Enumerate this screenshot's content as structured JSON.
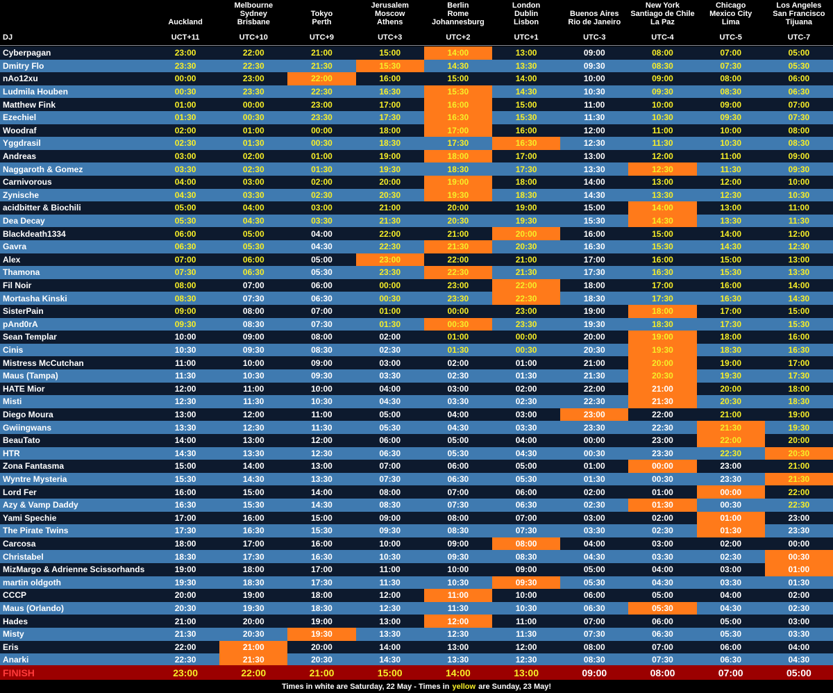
{
  "header": {
    "dj_label": "DJ",
    "zones": [
      {
        "cities": [
          "Auckland"
        ],
        "offset": "UCT+11"
      },
      {
        "cities": [
          "Melbourne",
          "Sydney",
          "Brisbane"
        ],
        "offset": "UTC+10"
      },
      {
        "cities": [
          "Tokyo",
          "Perth"
        ],
        "offset": "UTC+9"
      },
      {
        "cities": [
          "Jerusalem",
          "Moscow",
          "Athens"
        ],
        "offset": "UTC+3"
      },
      {
        "cities": [
          "Berlin",
          "Rome",
          "Johannesburg"
        ],
        "offset": "UTC+2"
      },
      {
        "cities": [
          "London",
          "Dublin",
          "Lisbon"
        ],
        "offset": "UTC+1"
      },
      {
        "cities": [
          "Buenos Aires",
          "Rio de Janeiro"
        ],
        "offset": "UTC-3"
      },
      {
        "cities": [
          "New York",
          "Santiago de Chile",
          "La Paz"
        ],
        "offset": "UTC-4"
      },
      {
        "cities": [
          "Chicago",
          "Mexico City",
          "Lima"
        ],
        "offset": "UTC-5"
      },
      {
        "cities": [
          "Los Angeles",
          "San Francisco",
          "Tijuana"
        ],
        "offset": "UTC-7"
      }
    ]
  },
  "colors": {
    "row_dark": "#0d1a2e",
    "row_blue": "#3f7ab0",
    "highlight": "#ff7a1a",
    "sunday_text": "#f7ee28",
    "finish_bg": "#9b0000",
    "finish_label": "#ff3a3a"
  },
  "rows": [
    {
      "dj": "Cyberpagan",
      "times": [
        "23:00",
        "22:00",
        "21:00",
        "15:00",
        "14:00",
        "13:00",
        "09:00",
        "08:00",
        "07:00",
        "05:00"
      ],
      "highlight": 4
    },
    {
      "dj": "Dmitry Flo",
      "times": [
        "23:30",
        "22:30",
        "21:30",
        "15:30",
        "14:30",
        "13:30",
        "09:30",
        "08:30",
        "07:30",
        "05:30"
      ],
      "highlight": 3
    },
    {
      "dj": "nAo12xu",
      "times": [
        "00:00",
        "23:00",
        "22:00",
        "16:00",
        "15:00",
        "14:00",
        "10:00",
        "09:00",
        "08:00",
        "06:00"
      ],
      "highlight": 2
    },
    {
      "dj": "Ludmila Houben",
      "times": [
        "00:30",
        "23:30",
        "22:30",
        "16:30",
        "15:30",
        "14:30",
        "10:30",
        "09:30",
        "08:30",
        "06:30"
      ],
      "highlight": 4
    },
    {
      "dj": "Matthew Fink",
      "times": [
        "01:00",
        "00:00",
        "23:00",
        "17:00",
        "16:00",
        "15:00",
        "11:00",
        "10:00",
        "09:00",
        "07:00"
      ],
      "highlight": 4
    },
    {
      "dj": "Ezechiel",
      "times": [
        "01:30",
        "00:30",
        "23:30",
        "17:30",
        "16:30",
        "15:30",
        "11:30",
        "10:30",
        "09:30",
        "07:30"
      ],
      "highlight": 4
    },
    {
      "dj": "Woodraf",
      "times": [
        "02:00",
        "01:00",
        "00:00",
        "18:00",
        "17:00",
        "16:00",
        "12:00",
        "11:00",
        "10:00",
        "08:00"
      ],
      "highlight": 4
    },
    {
      "dj": "Yggdrasil",
      "times": [
        "02:30",
        "01:30",
        "00:30",
        "18:30",
        "17:30",
        "16:30",
        "12:30",
        "11:30",
        "10:30",
        "08:30"
      ],
      "highlight": 5
    },
    {
      "dj": "Andreas",
      "times": [
        "03:00",
        "02:00",
        "01:00",
        "19:00",
        "18:00",
        "17:00",
        "13:00",
        "12:00",
        "11:00",
        "09:00"
      ],
      "highlight": 4
    },
    {
      "dj": "Naggaroth & Gomez",
      "times": [
        "03:30",
        "02:30",
        "01:30",
        "19:30",
        "18:30",
        "17:30",
        "13:30",
        "12:30",
        "11:30",
        "09:30"
      ],
      "highlight": 7
    },
    {
      "dj": "Carnivorous",
      "times": [
        "04:00",
        "03:00",
        "02:00",
        "20:00",
        "19:00",
        "18:00",
        "14:00",
        "13:00",
        "12:00",
        "10:00"
      ],
      "highlight": 4
    },
    {
      "dj": "Zynische",
      "times": [
        "04:30",
        "03:30",
        "02:30",
        "20:30",
        "19:30",
        "18:30",
        "14:30",
        "13:30",
        "12:30",
        "10:30"
      ],
      "highlight": 4
    },
    {
      "dj": "acidbitter & Biochili",
      "times": [
        "05:00",
        "04:00",
        "03:00",
        "21:00",
        "20:00",
        "19:00",
        "15:00",
        "14:00",
        "13:00",
        "11:00"
      ],
      "highlight": 7
    },
    {
      "dj": "Dea Decay",
      "times": [
        "05:30",
        "04:30",
        "03:30",
        "21:30",
        "20:30",
        "19:30",
        "15:30",
        "14:30",
        "13:30",
        "11:30"
      ],
      "highlight": 7
    },
    {
      "dj": "Blackdeath1334",
      "times": [
        "06:00",
        "05:00",
        "04:00",
        "22:00",
        "21:00",
        "20:00",
        "16:00",
        "15:00",
        "14:00",
        "12:00"
      ],
      "highlight": 5
    },
    {
      "dj": "Gavra",
      "times": [
        "06:30",
        "05:30",
        "04:30",
        "22:30",
        "21:30",
        "20:30",
        "16:30",
        "15:30",
        "14:30",
        "12:30"
      ],
      "highlight": 4
    },
    {
      "dj": "Alex",
      "times": [
        "07:00",
        "06:00",
        "05:00",
        "23:00",
        "22:00",
        "21:00",
        "17:00",
        "16:00",
        "15:00",
        "13:00"
      ],
      "highlight": 3
    },
    {
      "dj": "Thamona",
      "times": [
        "07:30",
        "06:30",
        "05:30",
        "23:30",
        "22:30",
        "21:30",
        "17:30",
        "16:30",
        "15:30",
        "13:30"
      ],
      "highlight": 4
    },
    {
      "dj": "Fil Noir",
      "times": [
        "08:00",
        "07:00",
        "06:00",
        "00:00",
        "23:00",
        "22:00",
        "18:00",
        "17:00",
        "16:00",
        "14:00"
      ],
      "highlight": 5
    },
    {
      "dj": "Mortasha Kinski",
      "times": [
        "08:30",
        "07:30",
        "06:30",
        "00:30",
        "23:30",
        "22:30",
        "18:30",
        "17:30",
        "16:30",
        "14:30"
      ],
      "highlight": 5
    },
    {
      "dj": "SisterPain",
      "times": [
        "09:00",
        "08:00",
        "07:00",
        "01:00",
        "00:00",
        "23:00",
        "19:00",
        "18:00",
        "17:00",
        "15:00"
      ],
      "highlight": 7
    },
    {
      "dj": "pAnd0rA",
      "times": [
        "09:30",
        "08:30",
        "07:30",
        "01:30",
        "00:30",
        "23:30",
        "19:30",
        "18:30",
        "17:30",
        "15:30"
      ],
      "highlight": 4
    },
    {
      "dj": "Sean Templar",
      "times": [
        "10:00",
        "09:00",
        "08:00",
        "02:00",
        "01:00",
        "00:00",
        "20:00",
        "19:00",
        "18:00",
        "16:00"
      ],
      "highlight": 7
    },
    {
      "dj": "Cinis",
      "times": [
        "10:30",
        "09:30",
        "08:30",
        "02:30",
        "01:30",
        "00:30",
        "20:30",
        "19:30",
        "18:30",
        "16:30"
      ],
      "highlight": 7
    },
    {
      "dj": "Mistress McCutchan",
      "times": [
        "11:00",
        "10:00",
        "09:00",
        "03:00",
        "02:00",
        "01:00",
        "21:00",
        "20:00",
        "19:00",
        "17:00"
      ],
      "highlight": 7
    },
    {
      "dj": "Maus (Tampa)",
      "times": [
        "11:30",
        "10:30",
        "09:30",
        "03:30",
        "02:30",
        "01:30",
        "21:30",
        "20:30",
        "19:30",
        "17:30"
      ],
      "highlight": 7
    },
    {
      "dj": "HATE Mior",
      "times": [
        "12:00",
        "11:00",
        "10:00",
        "04:00",
        "03:00",
        "02:00",
        "22:00",
        "21:00",
        "20:00",
        "18:00"
      ],
      "highlight": 7
    },
    {
      "dj": "Misti",
      "times": [
        "12:30",
        "11:30",
        "10:30",
        "04:30",
        "03:30",
        "02:30",
        "22:30",
        "21:30",
        "20:30",
        "18:30"
      ],
      "highlight": 7
    },
    {
      "dj": "Diego Moura",
      "times": [
        "13:00",
        "12:00",
        "11:00",
        "05:00",
        "04:00",
        "03:00",
        "23:00",
        "22:00",
        "21:00",
        "19:00"
      ],
      "highlight": 6
    },
    {
      "dj": "Gwiingwans",
      "times": [
        "13:30",
        "12:30",
        "11:30",
        "05:30",
        "04:30",
        "03:30",
        "23:30",
        "22:30",
        "21:30",
        "19:30"
      ],
      "highlight": 8
    },
    {
      "dj": "BeauTato",
      "times": [
        "14:00",
        "13:00",
        "12:00",
        "06:00",
        "05:00",
        "04:00",
        "00:00",
        "23:00",
        "22:00",
        "20:00"
      ],
      "highlight": 8
    },
    {
      "dj": "HTR",
      "times": [
        "14:30",
        "13:30",
        "12:30",
        "06:30",
        "05:30",
        "04:30",
        "00:30",
        "23:30",
        "22:30",
        "20:30"
      ],
      "highlight": 9
    },
    {
      "dj": "Zona Fantasma",
      "times": [
        "15:00",
        "14:00",
        "13:00",
        "07:00",
        "06:00",
        "05:00",
        "01:00",
        "00:00",
        "23:00",
        "21:00"
      ],
      "highlight": 7
    },
    {
      "dj": "Wyntre Mysteria",
      "times": [
        "15:30",
        "14:30",
        "13:30",
        "07:30",
        "06:30",
        "05:30",
        "01:30",
        "00:30",
        "23:30",
        "21:30"
      ],
      "highlight": 9
    },
    {
      "dj": "Lord Fer",
      "times": [
        "16:00",
        "15:00",
        "14:00",
        "08:00",
        "07:00",
        "06:00",
        "02:00",
        "01:00",
        "00:00",
        "22:00"
      ],
      "highlight": 8
    },
    {
      "dj": "Azy & Vamp Daddy",
      "times": [
        "16:30",
        "15:30",
        "14:30",
        "08:30",
        "07:30",
        "06:30",
        "02:30",
        "01:30",
        "00:30",
        "22:30"
      ],
      "highlight": 7
    },
    {
      "dj": "Yami Spechie",
      "times": [
        "17:00",
        "16:00",
        "15:00",
        "09:00",
        "08:00",
        "07:00",
        "03:00",
        "02:00",
        "01:00",
        "23:00"
      ],
      "highlight": 8
    },
    {
      "dj": "The Pirate Twins",
      "times": [
        "17:30",
        "16:30",
        "15:30",
        "09:30",
        "08:30",
        "07:30",
        "03:30",
        "02:30",
        "01:30",
        "23:30"
      ],
      "highlight": 8
    },
    {
      "dj": "Carcosa",
      "times": [
        "18:00",
        "17:00",
        "16:00",
        "10:00",
        "09:00",
        "08:00",
        "04:00",
        "03:00",
        "02:00",
        "00:00"
      ],
      "highlight": 5
    },
    {
      "dj": "Christabel",
      "times": [
        "18:30",
        "17:30",
        "16:30",
        "10:30",
        "09:30",
        "08:30",
        "04:30",
        "03:30",
        "02:30",
        "00:30"
      ],
      "highlight": 9
    },
    {
      "dj": "MizMargo & Adrienne Scissorhands",
      "times": [
        "19:00",
        "18:00",
        "17:00",
        "11:00",
        "10:00",
        "09:00",
        "05:00",
        "04:00",
        "03:00",
        "01:00"
      ],
      "highlight": 9
    },
    {
      "dj": "martin oldgoth",
      "times": [
        "19:30",
        "18:30",
        "17:30",
        "11:30",
        "10:30",
        "09:30",
        "05:30",
        "04:30",
        "03:30",
        "01:30"
      ],
      "highlight": 5
    },
    {
      "dj": "CCCP",
      "times": [
        "20:00",
        "19:00",
        "18:00",
        "12:00",
        "11:00",
        "10:00",
        "06:00",
        "05:00",
        "04:00",
        "02:00"
      ],
      "highlight": 4
    },
    {
      "dj": "Maus (Orlando)",
      "times": [
        "20:30",
        "19:30",
        "18:30",
        "12:30",
        "11:30",
        "10:30",
        "06:30",
        "05:30",
        "04:30",
        "02:30"
      ],
      "highlight": 7
    },
    {
      "dj": "Hades",
      "times": [
        "21:00",
        "20:00",
        "19:00",
        "13:00",
        "12:00",
        "11:00",
        "07:00",
        "06:00",
        "05:00",
        "03:00"
      ],
      "highlight": 4
    },
    {
      "dj": "Misty",
      "times": [
        "21:30",
        "20:30",
        "19:30",
        "13:30",
        "12:30",
        "11:30",
        "07:30",
        "06:30",
        "05:30",
        "03:30"
      ],
      "highlight": 2
    },
    {
      "dj": "Eris",
      "times": [
        "22:00",
        "21:00",
        "20:00",
        "14:00",
        "13:00",
        "12:00",
        "08:00",
        "07:00",
        "06:00",
        "04:00"
      ],
      "highlight": 1
    },
    {
      "dj": "Anarki",
      "times": [
        "22:30",
        "21:30",
        "20:30",
        "14:30",
        "13:30",
        "12:30",
        "08:30",
        "07:30",
        "06:30",
        "04:30"
      ],
      "highlight": 1
    }
  ],
  "sunday_counts": [
    22,
    18,
    14,
    22,
    24,
    24,
    0,
    26,
    32,
    36
  ],
  "finish": {
    "label": "FINISH",
    "times": [
      "23:00",
      "22:00",
      "21:00",
      "15:00",
      "14:00",
      "13:00",
      "09:00",
      "08:00",
      "07:00",
      "05:00"
    ]
  },
  "footer": {
    "part1": "Times in white are Saturday, 22 May - Times in",
    "yellow_word": "yellow",
    "part2": "are Sunday, 23 May!"
  }
}
